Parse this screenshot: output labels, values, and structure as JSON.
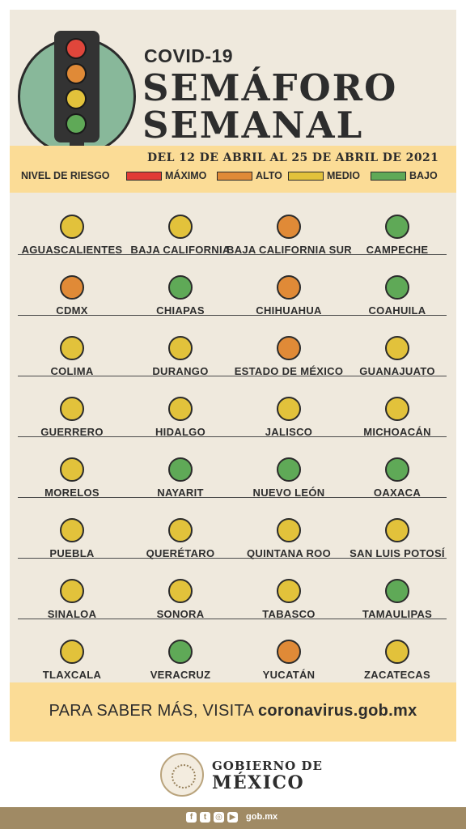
{
  "header": {
    "kicker": "COVID-19",
    "title_line1": "SEMÁFORO",
    "title_line2": "SEMANAL",
    "dates": "DEL 12 DE ABRIL AL 25 DE ABRIL DE 2021"
  },
  "traffic_light": {
    "lights": [
      "#e0463b",
      "#e08a37",
      "#e2c23b",
      "#5fa957"
    ]
  },
  "legend": {
    "label": "NIVEL DE RIESGO",
    "items": [
      {
        "label": "MÁXIMO",
        "color": "#e13a35"
      },
      {
        "label": "ALTO",
        "color": "#e08a37"
      },
      {
        "label": "MEDIO",
        "color": "#e2c23b"
      },
      {
        "label": "BAJO",
        "color": "#5fa957"
      }
    ]
  },
  "colors": {
    "ALTO": "#e08a37",
    "MEDIO": "#e2c23b",
    "BAJO": "#5fa957"
  },
  "states": [
    {
      "name": "AGUASCALIENTES",
      "level": "MEDIO"
    },
    {
      "name": "BAJA CALIFORNIA",
      "level": "MEDIO"
    },
    {
      "name": "BAJA CALIFORNIA SUR",
      "level": "ALTO"
    },
    {
      "name": "CAMPECHE",
      "level": "BAJO"
    },
    {
      "name": "CDMX",
      "level": "ALTO"
    },
    {
      "name": "CHIAPAS",
      "level": "BAJO"
    },
    {
      "name": "CHIHUAHUA",
      "level": "ALTO"
    },
    {
      "name": "COAHUILA",
      "level": "BAJO"
    },
    {
      "name": "COLIMA",
      "level": "MEDIO"
    },
    {
      "name": "DURANGO",
      "level": "MEDIO"
    },
    {
      "name": "ESTADO DE MÉXICO",
      "level": "ALTO"
    },
    {
      "name": "GUANAJUATO",
      "level": "MEDIO"
    },
    {
      "name": "GUERRERO",
      "level": "MEDIO"
    },
    {
      "name": "HIDALGO",
      "level": "MEDIO"
    },
    {
      "name": "JALISCO",
      "level": "MEDIO"
    },
    {
      "name": "MICHOACÁN",
      "level": "MEDIO"
    },
    {
      "name": "MORELOS",
      "level": "MEDIO"
    },
    {
      "name": "NAYARIT",
      "level": "BAJO"
    },
    {
      "name": "NUEVO LEÓN",
      "level": "BAJO"
    },
    {
      "name": "OAXACA",
      "level": "BAJO"
    },
    {
      "name": "PUEBLA",
      "level": "MEDIO"
    },
    {
      "name": "QUERÉTARO",
      "level": "MEDIO"
    },
    {
      "name": "QUINTANA ROO",
      "level": "MEDIO"
    },
    {
      "name": "SAN LUIS POTOSÍ",
      "level": "MEDIO"
    },
    {
      "name": "SINALOA",
      "level": "MEDIO"
    },
    {
      "name": "SONORA",
      "level": "MEDIO"
    },
    {
      "name": "TABASCO",
      "level": "MEDIO"
    },
    {
      "name": "TAMAULIPAS",
      "level": "BAJO"
    },
    {
      "name": "TLAXCALA",
      "level": "MEDIO"
    },
    {
      "name": "VERACRUZ",
      "level": "BAJO"
    },
    {
      "name": "YUCATÁN",
      "level": "ALTO"
    },
    {
      "name": "ZACATECAS",
      "level": "MEDIO"
    }
  ],
  "cta": {
    "text": "PARA SABER MÁS, VISITA ",
    "link": "coronavirus.gob.mx"
  },
  "footer": {
    "gob_line1": "GOBIERNO DE",
    "gob_line2": "MÉXICO",
    "social_icons": [
      "facebook-icon",
      "twitter-icon",
      "instagram-icon",
      "youtube-icon"
    ],
    "site": "gob.mx"
  }
}
